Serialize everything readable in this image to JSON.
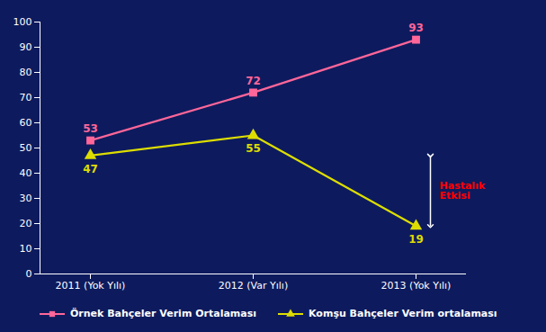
{
  "chart_data": {
    "type": "line",
    "categories": [
      "2011 (Yok Yılı)",
      "2012 (Var Yılı)",
      "2013 (Yok Yılı)"
    ],
    "series": [
      {
        "name": "Örnek Bahçeler Verim Ortalaması",
        "color": "#FF6699",
        "marker": "square",
        "values": [
          53,
          72,
          93
        ]
      },
      {
        "name": "Komşu Bahçeler Verim ortalaması",
        "color": "#DDDD00",
        "marker": "triangle",
        "values": [
          47,
          55,
          19
        ]
      }
    ],
    "ylim": [
      0,
      100
    ],
    "yticks": [
      0,
      10,
      20,
      30,
      40,
      50,
      60,
      70,
      80,
      90,
      100
    ],
    "grid": false,
    "data_labels": true,
    "legend": "bottom",
    "annotations": [
      {
        "text": "Hastalık\nEtkisi",
        "x": "2013 (Yok Yılı)",
        "y": [
          47,
          19
        ],
        "color": "#FF0000"
      }
    ]
  }
}
